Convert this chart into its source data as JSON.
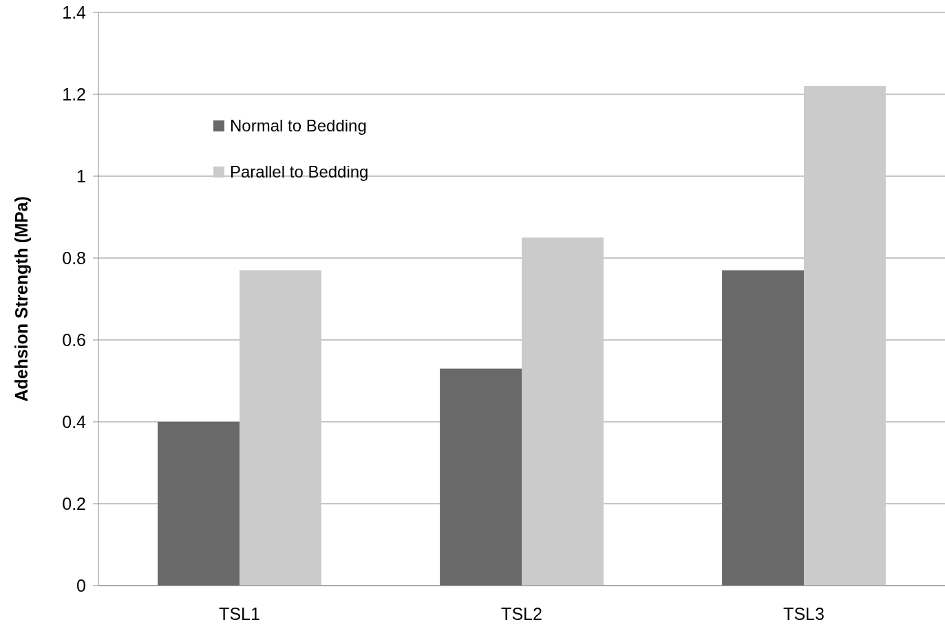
{
  "chart_data": {
    "type": "bar",
    "ylabel": "Adehsion Strength (MPa)",
    "categories": [
      "TSL1",
      "TSL2",
      "TSL3"
    ],
    "series": [
      {
        "name": "Normal to Bedding",
        "color": "#696969",
        "values": [
          0.4,
          0.53,
          0.77
        ]
      },
      {
        "name": "Parallel to Bedding",
        "color": "#cbcbcb",
        "values": [
          0.77,
          0.85,
          1.22
        ]
      }
    ],
    "ylim": [
      0,
      1.4
    ],
    "yticks": [
      0,
      0.2,
      0.4,
      0.6,
      0.8,
      1,
      1.2,
      1.4
    ],
    "grid": "y",
    "legend": "top left"
  }
}
